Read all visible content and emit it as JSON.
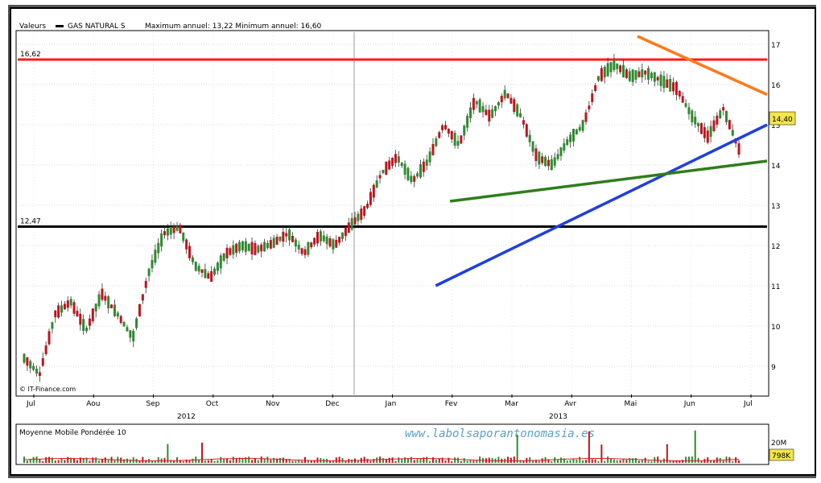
{
  "header": {
    "label": "Valeurs",
    "series_name": "GAS NATURAL S",
    "stats": "Maximum annuel: 13,22 Minimum annuel: 16,60"
  },
  "credit": "© IT-Finance.com",
  "watermark": "www.labolsaporantonomasia.es",
  "volume": {
    "label": "Moyenne Mobile Pondérée 10",
    "axis_label": "20M",
    "last_badge": "798K"
  },
  "colors": {
    "up": "#2e8b2e",
    "down": "#c0141e",
    "resistance": "#ff1a1a",
    "support": "#000000",
    "trend_blue": "#1f3fe0",
    "trend_green": "#2f7d1a",
    "trend_orange": "#ff7a1a",
    "volume_avg": "#d02020",
    "last_badge": "#f2e64a"
  },
  "chart_data": {
    "type": "candlestick",
    "title": "GAS NATURAL S",
    "x_ticks": [
      "Jul",
      "Aou",
      "Sep",
      "Oct",
      "Nov",
      "Dec",
      "Jan",
      "Fev",
      "Mar",
      "Avr",
      "Mai",
      "Jun",
      "Jul"
    ],
    "years": [
      "2012",
      "2013"
    ],
    "y_ticks": [
      9,
      10,
      11,
      12,
      13,
      14,
      15,
      16,
      17
    ],
    "ylim": [
      8.3,
      17.3
    ],
    "last_price": "14,40",
    "levels": [
      {
        "name": "resistance",
        "value": 16.62,
        "label": "16,62"
      },
      {
        "name": "support",
        "value": 12.47,
        "label": "12,47"
      }
    ],
    "trendlines": [
      {
        "name": "blue",
        "from": [
          29,
          11.0
        ],
        "to": [
          52,
          15.0
        ]
      },
      {
        "name": "green",
        "from": [
          30,
          13.1
        ],
        "to": [
          52,
          14.1
        ]
      },
      {
        "name": "orange",
        "from": [
          43,
          17.2
        ],
        "to": [
          52,
          15.75
        ]
      }
    ],
    "anchors": [
      [
        0,
        9.2
      ],
      [
        1,
        8.8
      ],
      [
        2,
        10.3
      ],
      [
        3,
        10.6
      ],
      [
        4,
        9.9
      ],
      [
        5,
        10.8
      ],
      [
        6,
        10.3
      ],
      [
        7,
        9.7
      ],
      [
        8,
        11.3
      ],
      [
        9,
        12.3
      ],
      [
        10,
        12.45
      ],
      [
        11,
        11.5
      ],
      [
        12,
        11.2
      ],
      [
        13,
        11.8
      ],
      [
        14,
        12.0
      ],
      [
        15,
        11.9
      ],
      [
        16,
        12.05
      ],
      [
        17,
        12.3
      ],
      [
        18,
        11.8
      ],
      [
        19,
        12.25
      ],
      [
        20,
        12.0
      ],
      [
        21,
        12.5
      ],
      [
        22,
        12.9
      ],
      [
        23,
        13.8
      ],
      [
        24,
        14.2
      ],
      [
        25,
        13.6
      ],
      [
        26,
        14.1
      ],
      [
        27,
        15.0
      ],
      [
        28,
        14.5
      ],
      [
        29,
        15.6
      ],
      [
        30,
        15.2
      ],
      [
        31,
        15.8
      ],
      [
        32,
        15.2
      ],
      [
        33,
        14.2
      ],
      [
        34,
        14.0
      ],
      [
        35,
        14.6
      ],
      [
        36,
        15.0
      ],
      [
        37,
        16.2
      ],
      [
        38,
        16.5
      ],
      [
        39,
        16.2
      ],
      [
        40,
        16.3
      ],
      [
        41,
        16.1
      ],
      [
        42,
        15.9
      ],
      [
        43,
        15.2
      ],
      [
        44,
        14.7
      ],
      [
        45,
        15.4
      ],
      [
        46,
        14.4
      ]
    ],
    "volume_spikes_at": [
      0.2,
      0.25,
      0.69,
      0.79,
      0.81,
      0.9,
      0.94
    ]
  }
}
